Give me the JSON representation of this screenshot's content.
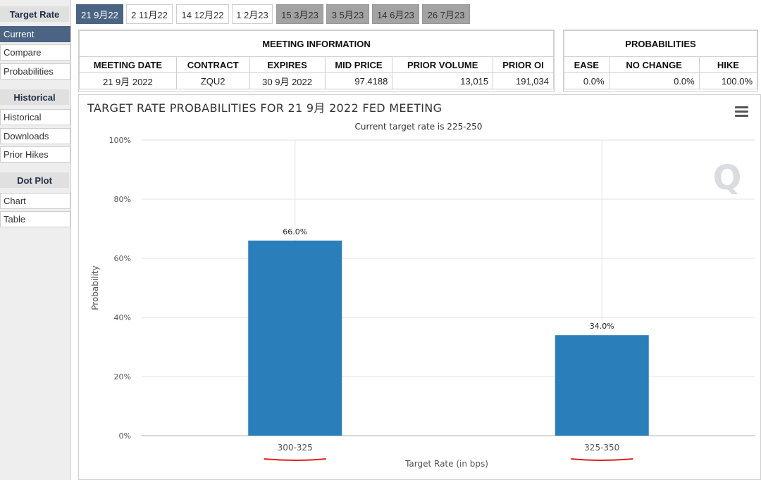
{
  "sidebar": {
    "sections": [
      {
        "header": "Target Rate",
        "items": [
          "Current",
          "Compare",
          "Probabilities"
        ]
      },
      {
        "header": "Historical",
        "items": [
          "Historical",
          "Downloads",
          "Prior Hikes"
        ]
      },
      {
        "header": "Dot Plot",
        "items": [
          "Chart",
          "Table"
        ]
      }
    ],
    "active_item": "Current"
  },
  "tabs": [
    "21 9月22",
    "2 11月22",
    "14 12月22",
    "1 2月23",
    "15 3月23",
    "3 5月23",
    "14 6月23",
    "26 7月23"
  ],
  "meeting_info": {
    "title": "MEETING INFORMATION",
    "headers": [
      "MEETING DATE",
      "CONTRACT",
      "EXPIRES",
      "MID PRICE",
      "PRIOR VOLUME",
      "PRIOR OI"
    ],
    "row": [
      "21 9月 2022",
      "ZQU2",
      "30 9月 2022",
      "97.4188",
      "13,015",
      "191,034"
    ]
  },
  "probabilities": {
    "title": "PROBABILITIES",
    "headers": [
      "EASE",
      "NO CHANGE",
      "HIKE"
    ],
    "row": [
      "0.0%",
      "0.0%",
      "100.0%"
    ]
  },
  "chart_data": {
    "type": "bar",
    "title": "TARGET RATE PROBABILITIES FOR 21 9月 2022 FED MEETING",
    "subtitle": "Current target rate is 225-250",
    "xlabel": "Target Rate (in bps)",
    "ylabel": "Probability",
    "categories": [
      "300-325",
      "325-350"
    ],
    "values": [
      66.0,
      34.0
    ],
    "data_labels": [
      "66.0%",
      "34.0%"
    ],
    "ylim": [
      0,
      100
    ],
    "yticks": [
      "0%",
      "20%",
      "40%",
      "60%",
      "80%",
      "100%"
    ],
    "grid": true,
    "bar_color": "#2a7fba",
    "annotation_underline_color": "#e0201c"
  },
  "colors": {
    "accent": "#4b6483",
    "bar": "#2a7fba"
  },
  "icons": {
    "chart_menu": "hamburger-menu-icon",
    "watermark": "q-logo-icon"
  }
}
